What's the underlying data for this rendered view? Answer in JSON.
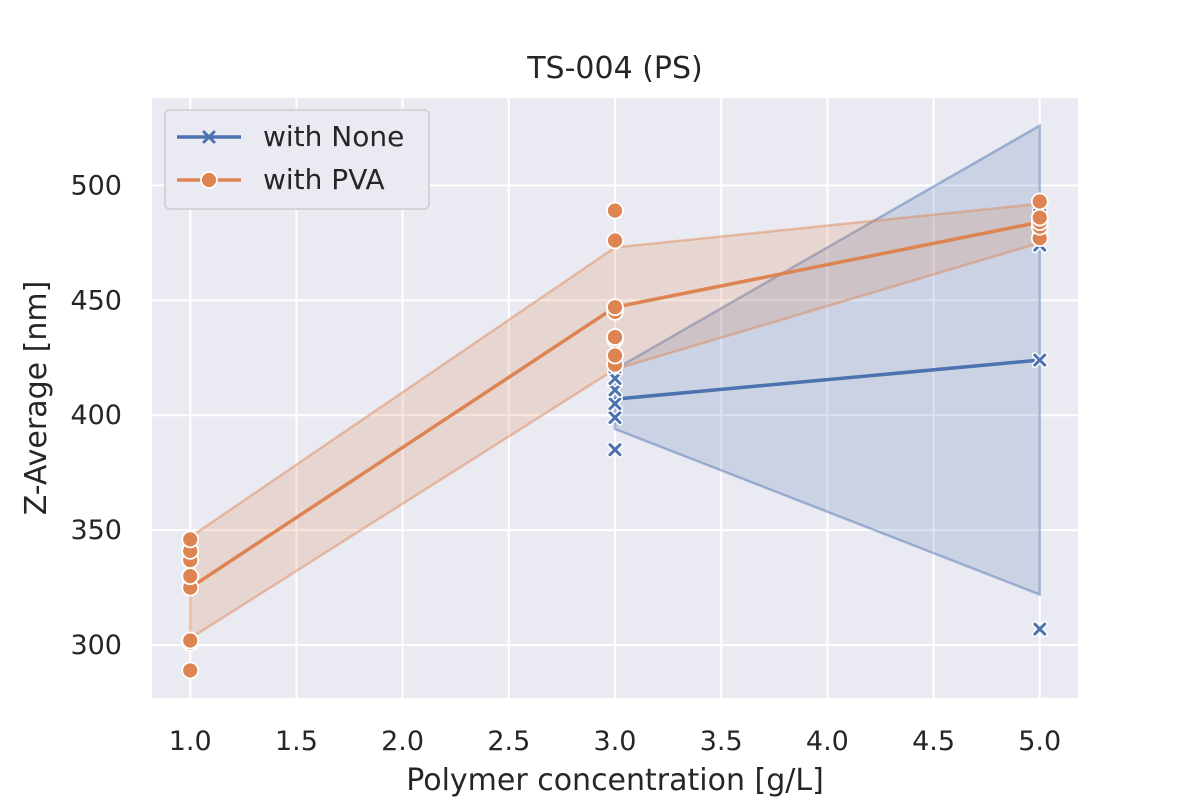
{
  "chart_data": {
    "type": "line",
    "title": "TS-004 (PS)",
    "xlabel": "Polymer concentration [g/L]",
    "ylabel": "Z-Average [nm]",
    "xlim": [
      0.82,
      5.18
    ],
    "ylim": [
      277,
      538
    ],
    "x_ticks": [
      "1.0",
      "1.5",
      "2.0",
      "2.5",
      "3.0",
      "3.5",
      "4.0",
      "4.5",
      "5.0"
    ],
    "x_tick_values": [
      1.0,
      1.5,
      2.0,
      2.5,
      3.0,
      3.5,
      4.0,
      4.5,
      5.0
    ],
    "y_ticks": [
      "300",
      "350",
      "400",
      "450",
      "500"
    ],
    "y_tick_values": [
      300,
      350,
      400,
      450,
      500
    ],
    "grid": true,
    "legend_position": "upper-left",
    "series": [
      {
        "name": "with None",
        "color": "#4c72b0",
        "marker": "x",
        "x": [
          3.0,
          5.0
        ],
        "mean": [
          407,
          424
        ],
        "ci_lower": [
          394,
          322
        ],
        "ci_upper": [
          420,
          526
        ],
        "points": [
          [
            3.0,
            385
          ],
          [
            3.0,
            399
          ],
          [
            3.0,
            405
          ],
          [
            3.0,
            411
          ],
          [
            3.0,
            416
          ],
          [
            3.0,
            421
          ],
          [
            5.0,
            307
          ],
          [
            5.0,
            424
          ],
          [
            5.0,
            474
          ],
          [
            5.0,
            478
          ],
          [
            5.0,
            481
          ],
          [
            5.0,
            484
          ],
          [
            5.0,
            487
          ]
        ]
      },
      {
        "name": "with PVA",
        "color": "#dd8452",
        "marker": "o",
        "x": [
          1.0,
          3.0,
          5.0
        ],
        "mean": [
          325,
          447,
          484
        ],
        "ci_lower": [
          303,
          420,
          475
        ],
        "ci_upper": [
          347,
          473,
          492
        ],
        "points": [
          [
            1.0,
            289
          ],
          [
            1.0,
            301
          ],
          [
            1.0,
            302
          ],
          [
            1.0,
            325
          ],
          [
            1.0,
            330
          ],
          [
            1.0,
            337
          ],
          [
            1.0,
            341
          ],
          [
            1.0,
            346
          ],
          [
            3.0,
            422
          ],
          [
            3.0,
            426
          ],
          [
            3.0,
            433
          ],
          [
            3.0,
            434
          ],
          [
            3.0,
            445
          ],
          [
            3.0,
            447
          ],
          [
            3.0,
            476
          ],
          [
            3.0,
            489
          ],
          [
            5.0,
            477
          ],
          [
            5.0,
            482
          ],
          [
            5.0,
            484
          ],
          [
            5.0,
            486
          ],
          [
            5.0,
            493
          ]
        ]
      }
    ]
  }
}
